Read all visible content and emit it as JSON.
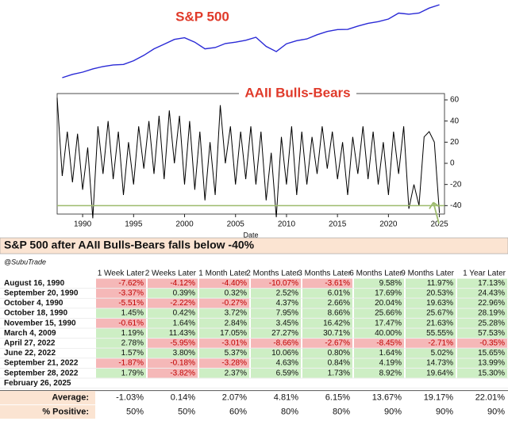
{
  "chart_data": [
    {
      "type": "line",
      "title": "S&P 500",
      "color": "#2a2ad6",
      "log": true,
      "x": [
        1988,
        1989,
        1990,
        1991,
        1992,
        1993,
        1994,
        1995,
        1996,
        1997,
        1998,
        1999,
        2000,
        2001,
        2002,
        2003,
        2004,
        2005,
        2006,
        2007,
        2008,
        2009,
        2010,
        2011,
        2012,
        2013,
        2014,
        2015,
        2016,
        2017,
        2018,
        2019,
        2020,
        2021,
        2022,
        2023,
        2024,
        2025
      ],
      "values": [
        260,
        300,
        330,
        380,
        420,
        450,
        460,
        540,
        680,
        900,
        1100,
        1350,
        1450,
        1200,
        900,
        950,
        1130,
        1200,
        1300,
        1480,
        1000,
        800,
        1120,
        1280,
        1380,
        1650,
        1900,
        2060,
        2080,
        2400,
        2700,
        2900,
        3250,
        4200,
        4000,
        4200,
        5200,
        6000
      ]
    },
    {
      "type": "line",
      "title": "AAII Bulls-Bears",
      "xlabel": "Date",
      "color": "#000000",
      "x": [
        1987.5,
        1988,
        1988.5,
        1989,
        1989.5,
        1990,
        1990.5,
        1991,
        1991.5,
        1992,
        1992.5,
        1993,
        1993.5,
        1994,
        1994.5,
        1995,
        1995.5,
        1996,
        1996.5,
        1997,
        1997.5,
        1998,
        1998.5,
        1999,
        1999.5,
        2000,
        2000.5,
        2001,
        2001.5,
        2002,
        2002.5,
        2003,
        2003.5,
        2004,
        2004.5,
        2005,
        2005.5,
        2006,
        2006.5,
        2007,
        2007.5,
        2008,
        2008.5,
        2009,
        2009.5,
        2010,
        2010.5,
        2011,
        2011.5,
        2012,
        2012.5,
        2013,
        2013.5,
        2014,
        2014.5,
        2015,
        2015.5,
        2016,
        2016.5,
        2017,
        2017.5,
        2018,
        2018.5,
        2019,
        2019.5,
        2020,
        2020.5,
        2021,
        2021.5,
        2022,
        2022.5,
        2023,
        2023.5,
        2024,
        2024.5,
        2025
      ],
      "values": [
        62,
        -12,
        30,
        -18,
        28,
        -25,
        15,
        -52,
        35,
        -10,
        40,
        -15,
        30,
        -30,
        20,
        -20,
        35,
        -5,
        40,
        -10,
        45,
        -15,
        50,
        0,
        45,
        -20,
        40,
        -25,
        30,
        -35,
        20,
        -30,
        55,
        0,
        35,
        -20,
        30,
        -15,
        35,
        -20,
        30,
        -35,
        10,
        -51,
        25,
        -20,
        35,
        -30,
        30,
        -20,
        25,
        -10,
        35,
        -5,
        30,
        -15,
        20,
        -30,
        25,
        -10,
        35,
        -15,
        30,
        -20,
        20,
        -30,
        30,
        -10,
        35,
        -43,
        -20,
        -40,
        25,
        30,
        20,
        -47
      ],
      "xlim": [
        1987.5,
        2025.5
      ],
      "ylim": [
        -48,
        66
      ],
      "xticks": [
        1990,
        1995,
        2000,
        2005,
        2010,
        2015,
        2020,
        2025
      ],
      "yticks": [
        -40,
        -20,
        0,
        20,
        40,
        60
      ],
      "reference_line": -40,
      "reference_color": "#9dbb6c"
    }
  ],
  "table": {
    "title": "S&P 500 after AAII Bulls-Bears falls below -40%",
    "author": "@SubuTrade",
    "columns": [
      "1 Week Later",
      "2 Weeks Later",
      "1 Month Later",
      "2 Months Later",
      "3 Months Later",
      "6 Months Later",
      "9 Months Later",
      "1 Year Later"
    ],
    "rows": [
      [
        "August 16, 1990",
        "-7.62%",
        "-4.12%",
        "-4.40%",
        "-10.07%",
        "-3.61%",
        "9.58%",
        "11.97%",
        "17.13%"
      ],
      [
        "September 20, 1990",
        "-3.37%",
        "0.39%",
        "0.32%",
        "2.52%",
        "6.01%",
        "17.69%",
        "20.53%",
        "24.43%"
      ],
      [
        "October 4, 1990",
        "-5.51%",
        "-2.22%",
        "-0.27%",
        "4.37%",
        "2.66%",
        "20.04%",
        "19.63%",
        "22.96%"
      ],
      [
        "October 18, 1990",
        "1.45%",
        "0.42%",
        "3.72%",
        "7.95%",
        "8.66%",
        "25.66%",
        "25.67%",
        "28.19%"
      ],
      [
        "November 15, 1990",
        "-0.61%",
        "1.64%",
        "2.84%",
        "3.45%",
        "16.42%",
        "17.47%",
        "21.63%",
        "25.28%"
      ],
      [
        "March 4, 2009",
        "1.19%",
        "11.43%",
        "17.05%",
        "27.27%",
        "30.71%",
        "40.00%",
        "55.55%",
        "57.53%"
      ],
      [
        "April 27, 2022",
        "2.78%",
        "-5.95%",
        "-3.01%",
        "-8.66%",
        "-2.67%",
        "-8.45%",
        "-2.71%",
        "-0.35%"
      ],
      [
        "June 22, 2022",
        "1.57%",
        "3.80%",
        "5.37%",
        "10.06%",
        "0.80%",
        "1.64%",
        "5.02%",
        "15.65%"
      ],
      [
        "September 21, 2022",
        "-1.87%",
        "-0.18%",
        "-3.28%",
        "4.63%",
        "0.84%",
        "4.19%",
        "14.73%",
        "13.99%"
      ],
      [
        "September 28, 2022",
        "1.79%",
        "-3.82%",
        "2.37%",
        "6.59%",
        "1.73%",
        "8.92%",
        "19.64%",
        "15.30%"
      ],
      [
        "February 26, 2025"
      ]
    ],
    "summary": [
      [
        "Average:",
        "-1.03%",
        "0.14%",
        "2.07%",
        "4.81%",
        "6.15%",
        "13.67%",
        "19.17%",
        "22.01%"
      ],
      [
        "% Positive:",
        "50%",
        "50%",
        "60%",
        "80%",
        "80%",
        "90%",
        "90%",
        "90%"
      ]
    ]
  }
}
